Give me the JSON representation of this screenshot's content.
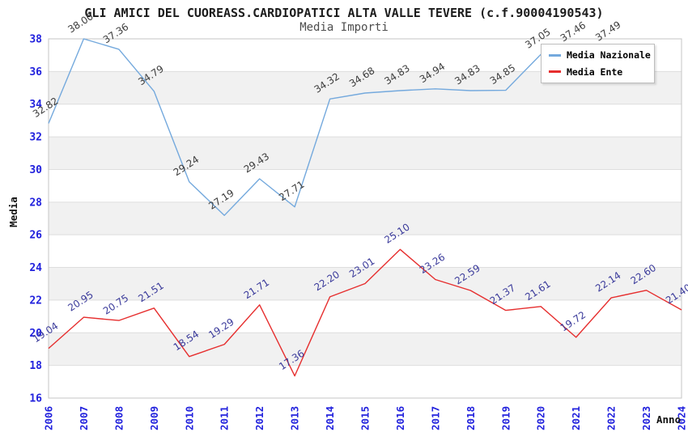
{
  "title": "GLI AMICI DEL CUOREASS.CARDIOPATICI ALTA VALLE TEVERE (c.f.90004190543)",
  "subtitle": "Media Importi",
  "chart_data": {
    "type": "line",
    "x": [
      2006,
      2007,
      2008,
      2009,
      2010,
      2011,
      2012,
      2013,
      2014,
      2015,
      2016,
      2017,
      2018,
      2019,
      2020,
      2021,
      2022,
      2023,
      2024
    ],
    "xlabel": "Anno",
    "ylabel": "Media",
    "ylim": [
      16,
      38
    ],
    "ytick_step": 2,
    "grid": "horizontal-bands",
    "legend_position": "top-right",
    "series": [
      {
        "name": "Media Nazionale",
        "color": "#74a9dd",
        "label_color": "#3c3c3c",
        "values": [
          32.82,
          38.0,
          37.36,
          34.79,
          29.24,
          27.19,
          29.43,
          27.71,
          34.32,
          34.68,
          34.83,
          34.94,
          34.83,
          34.85,
          37.05,
          37.46,
          37.49,
          null,
          null
        ],
        "note": "2021 label partially hidden behind legend; 2023-2024 hidden behind legend"
      },
      {
        "name": "Media Ente",
        "color": "#e62e2e",
        "label_color": "#3b3b9b",
        "values": [
          19.04,
          20.95,
          20.75,
          21.51,
          18.54,
          19.29,
          21.71,
          17.36,
          22.2,
          23.01,
          25.1,
          23.26,
          22.59,
          21.37,
          21.61,
          19.72,
          22.14,
          22.6,
          21.4
        ]
      }
    ]
  },
  "colors": {
    "tick_label": "#2222dd",
    "band_gray": "#f1f1f1",
    "gridline": "#dedede",
    "plot_border": "#c6c6c6",
    "axis_title": "#111111",
    "title": "#1c1c1c",
    "subtitle": "#4d4d4d"
  }
}
